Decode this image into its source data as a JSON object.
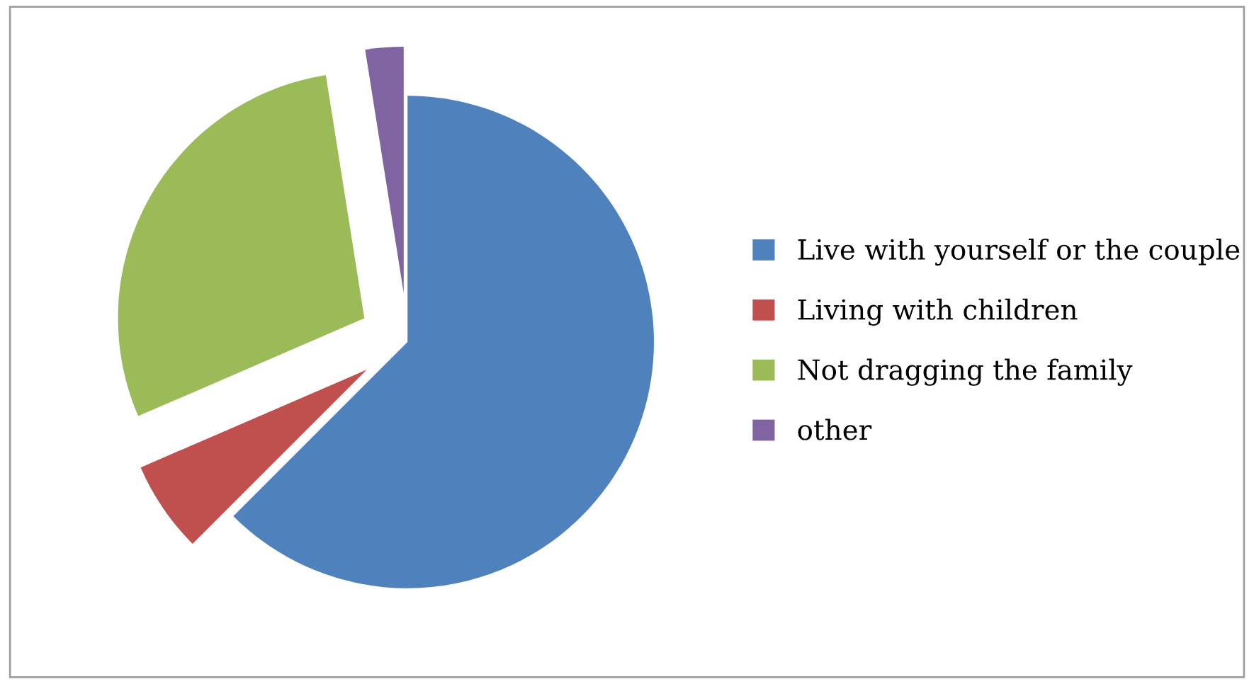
{
  "chart_data": {
    "type": "pie",
    "categories": [
      "Live with yourself or the couple",
      "Living with children",
      "Not dragging the family",
      "other"
    ],
    "values": [
      62.5,
      6,
      29,
      2.5
    ],
    "colors": [
      "#4f81bd",
      "#c0504d",
      "#9bbb59",
      "#8064a2"
    ],
    "legend": "right"
  }
}
